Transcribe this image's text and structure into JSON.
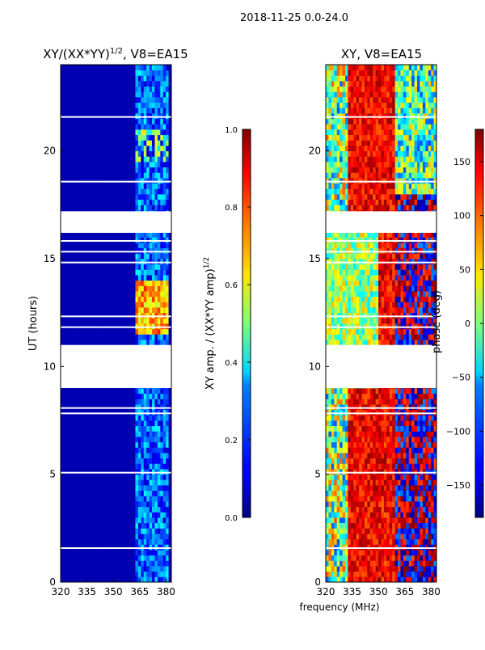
{
  "figure_title": "2018-11-25 0.0-24.0",
  "chart_data": [
    {
      "type": "heatmap",
      "title_main": "XY/(XX*YY)",
      "title_exp": "1/2",
      "title_tail": ", V8=EA15",
      "xlabel": "",
      "ylabel": "UT (hours)",
      "xlim": [
        320,
        383
      ],
      "ylim": [
        0,
        24
      ],
      "xticks": [
        320,
        335,
        350,
        365,
        380
      ],
      "yticks": [
        0,
        5,
        10,
        15,
        20
      ],
      "colormap": "jet",
      "colorbar": {
        "label_main": "XY amp. / (XX*YY amp)",
        "label_exp": "1/2",
        "range": [
          0.0,
          1.0
        ],
        "ticks": [
          "0.0",
          "0.2",
          "0.4",
          "0.6",
          "0.8",
          "1.0"
        ]
      },
      "gaps_hours": [
        [
          17.2,
          16.2
        ],
        [
          11.0,
          9.0
        ]
      ],
      "strong_region": {
        "freq_mhz": [
          363,
          382
        ],
        "hours": [
          11.5,
          14.0
        ],
        "value": 0.75
      },
      "weak_region": {
        "freq_mhz": [
          362,
          382
        ],
        "value": 0.25
      },
      "background_value": 0.05
    },
    {
      "type": "heatmap",
      "title": "XY, V8=EA15",
      "xlabel": "frequency (MHz)",
      "ylabel": "",
      "xlim": [
        320,
        383
      ],
      "ylim": [
        0,
        24
      ],
      "xticks": [
        320,
        335,
        350,
        365,
        380
      ],
      "yticks": [
        0,
        5,
        10,
        15,
        20
      ],
      "colormap": "jet",
      "colorbar": {
        "label": "phase (deg)",
        "range": [
          -180,
          180
        ],
        "ticks": [
          "−150",
          "−100",
          "−50",
          "0",
          "50",
          "100",
          "150"
        ],
        "tick_values": [
          -150,
          -100,
          -50,
          0,
          50,
          100,
          150
        ]
      },
      "gaps_hours": [
        [
          17.2,
          16.2
        ],
        [
          11.0,
          9.0
        ]
      ],
      "phase_trend": "near 180 deg around 345-360 MHz, wrapping to -180 deg above 360 MHz"
    }
  ]
}
